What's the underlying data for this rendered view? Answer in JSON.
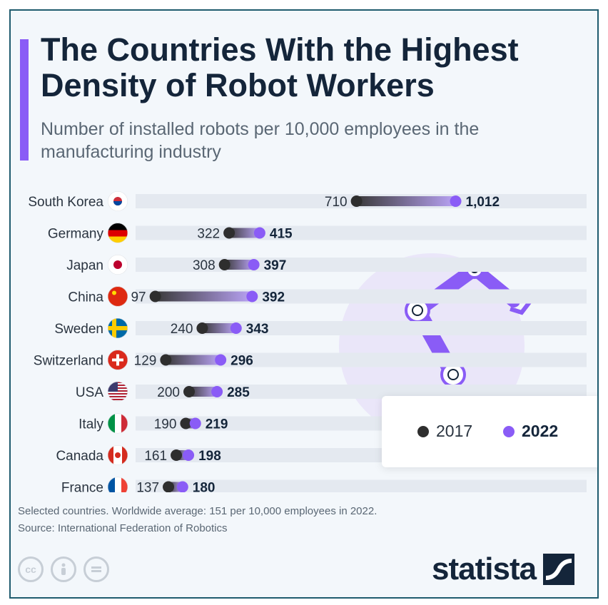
{
  "header": {
    "title": "The Countries With the Highest Density of Robot Workers",
    "subtitle": "Number of installed robots per 10,000 employees in the manufacturing industry"
  },
  "colors": {
    "series_2017": "#2e2e2e",
    "series_2022": "#8a5cf6",
    "accent": "#8a5cf6",
    "track": "#e4e9f0"
  },
  "chart_data": {
    "type": "dumbbell",
    "categories": [
      "South Korea",
      "Germany",
      "Japan",
      "China",
      "Sweden",
      "Switzerland",
      "USA",
      "Italy",
      "Canada",
      "France"
    ],
    "series": [
      {
        "name": "2017",
        "values": [
          710,
          322,
          308,
          97,
          240,
          129,
          200,
          190,
          161,
          137
        ]
      },
      {
        "name": "2022",
        "values": [
          1012,
          415,
          397,
          392,
          343,
          296,
          285,
          219,
          198,
          180
        ]
      }
    ],
    "value_labels_2017": [
      "710",
      "322",
      "308",
      "97",
      "240",
      "129",
      "200",
      "190",
      "161",
      "137"
    ],
    "value_labels_2022": [
      "1,012",
      "415",
      "397",
      "392",
      "343",
      "296",
      "285",
      "219",
      "198",
      "180"
    ],
    "flags": [
      "south-korea-flag-icon",
      "germany-flag-icon",
      "japan-flag-icon",
      "china-flag-icon",
      "sweden-flag-icon",
      "switzerland-flag-icon",
      "usa-flag-icon",
      "italy-flag-icon",
      "canada-flag-icon",
      "france-flag-icon"
    ],
    "legend_placement": "right"
  },
  "legend": {
    "item_2017": "2017",
    "item_2022": "2022"
  },
  "footer": {
    "note": "Selected countries. Worldwide average: 151 per 10,000 employees in 2022.",
    "source": "Source: International Federation of Robotics",
    "brand": "statista"
  },
  "icons": {
    "illustration": "robot-arm-icon",
    "license": [
      "creative-commons-icon",
      "attribution-icon",
      "no-derivatives-icon"
    ],
    "brand_mark": "statista-logo-icon"
  }
}
